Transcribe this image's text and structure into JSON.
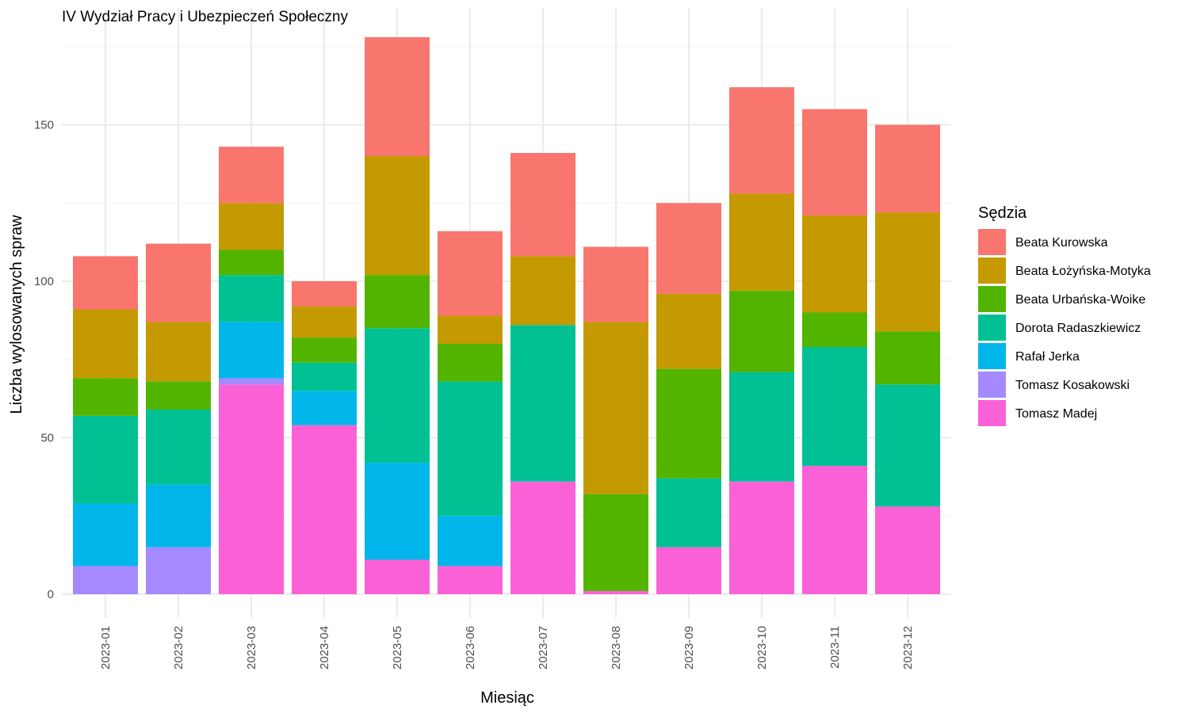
{
  "chart_data": {
    "type": "bar",
    "stacked": true,
    "title": "IV Wydział Pracy i Ubezpieczeń Społeczny",
    "xlabel": "Miesiąc",
    "ylabel": "Liczba wylosowanych spraw",
    "ylim": [
      0,
      182
    ],
    "yticks": [
      0,
      50,
      100,
      150
    ],
    "grid": true,
    "legend": {
      "title": "Sędzia",
      "position": "right"
    },
    "categories": [
      "2023-01",
      "2023-02",
      "2023-03",
      "2023-04",
      "2023-05",
      "2023-06",
      "2023-07",
      "2023-08",
      "2023-09",
      "2023-10",
      "2023-11",
      "2023-12"
    ],
    "series": [
      {
        "name": "Tomasz Madej",
        "color": "#FB61D7",
        "values": [
          0,
          0,
          67,
          54,
          11,
          9,
          36,
          1,
          15,
          36,
          41,
          28
        ]
      },
      {
        "name": "Tomasz Kosakowski",
        "color": "#A58AFF",
        "values": [
          9,
          15,
          2,
          0,
          0,
          0,
          0,
          0,
          0,
          0,
          0,
          0
        ]
      },
      {
        "name": "Rafał Jerka",
        "color": "#00B6EB",
        "values": [
          20,
          20,
          18,
          11,
          31,
          16,
          0,
          0,
          0,
          0,
          0,
          0
        ]
      },
      {
        "name": "Dorota Radaszkiewicz",
        "color": "#00C094",
        "values": [
          28,
          24,
          15,
          9,
          43,
          43,
          50,
          0,
          22,
          35,
          38,
          39
        ]
      },
      {
        "name": "Beata Urbańska-Woike",
        "color": "#53B400",
        "values": [
          12,
          9,
          8,
          8,
          17,
          12,
          0,
          31,
          35,
          26,
          11,
          17
        ]
      },
      {
        "name": "Beata Łożyńska-Motyka",
        "color": "#C49A00",
        "values": [
          22,
          19,
          15,
          10,
          38,
          9,
          22,
          55,
          24,
          31,
          31,
          38
        ]
      },
      {
        "name": "Beata Kurowska",
        "color": "#F8766D",
        "values": [
          17,
          25,
          18,
          8,
          38,
          27,
          33,
          24,
          29,
          34,
          34,
          28
        ]
      }
    ],
    "legend_order": [
      "Beata Kurowska",
      "Beata Łożyńska-Motyka",
      "Beata Urbańska-Woike",
      "Dorota Radaszkiewicz",
      "Rafał Jerka",
      "Tomasz Kosakowski",
      "Tomasz Madej"
    ]
  }
}
